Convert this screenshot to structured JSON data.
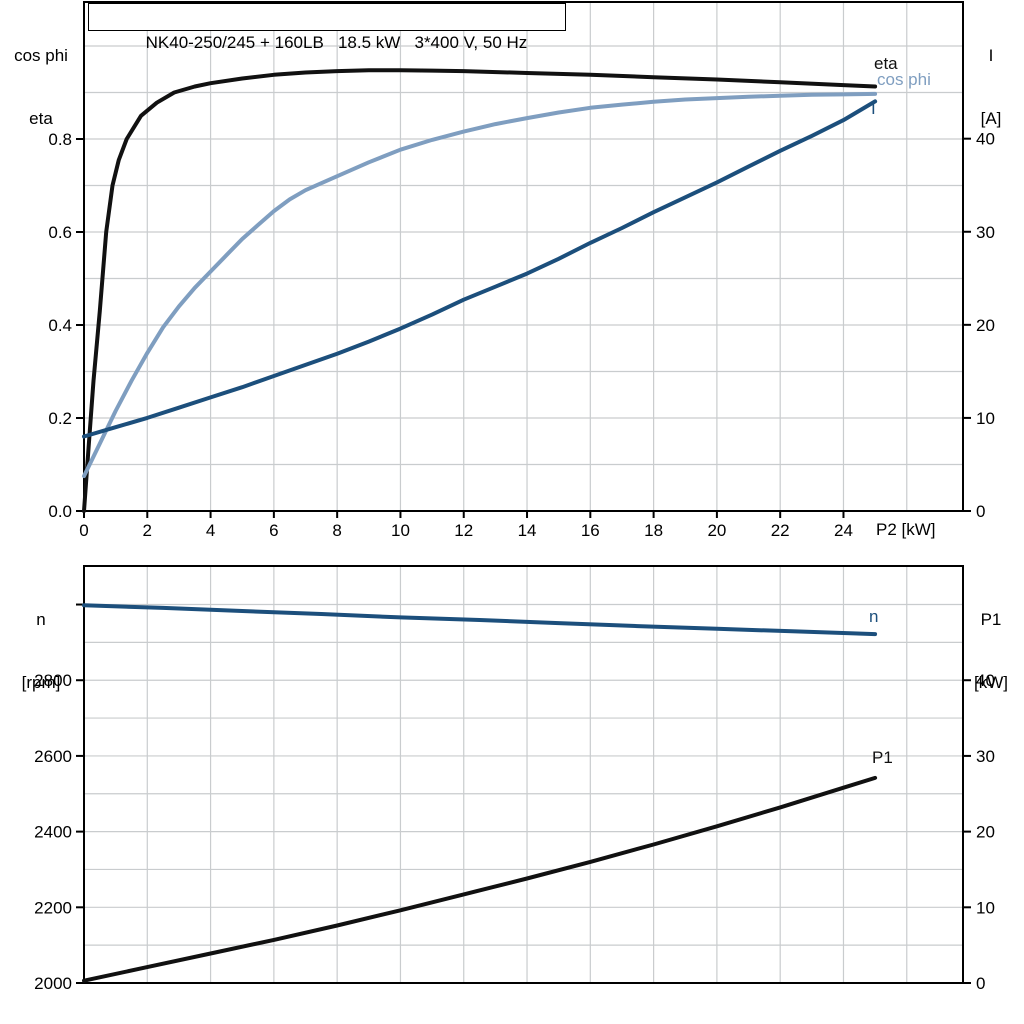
{
  "title_box": {
    "text": "NK40-250/245 + 160LB   18.5 kW   3*400 V, 50 Hz"
  },
  "colors": {
    "eta": "#111111",
    "cos_phi": "#7f9ec0",
    "current": "#1c4f7c",
    "speed": "#1c4f7c",
    "p1": "#111111",
    "grid": "#c9ccce",
    "axis": "#000000",
    "text": "#000000"
  },
  "top_chart": {
    "left_axis_header_line1": "cos phi",
    "left_axis_header_line2": "eta",
    "right_axis_header_line1": "I",
    "right_axis_header_line2": "[A]",
    "x_axis_label": "P2 [kW]",
    "curve_labels": {
      "eta": "eta",
      "cos_phi": "cos phi",
      "current": "I"
    }
  },
  "bottom_chart": {
    "left_axis_header_line1": "n",
    "left_axis_header_line2": "[rpm]",
    "right_axis_header_line1": "P1",
    "right_axis_header_line2": "[kW]",
    "curve_labels": {
      "speed": "n",
      "p1": "P1"
    }
  },
  "chart_data": [
    {
      "type": "line",
      "title": "NK40-250/245 + 160LB  18.5 kW  3*400 V, 50 Hz",
      "xlabel": "P2 [kW]",
      "ylabel_left": "cos phi / eta",
      "ylabel_right": "I [A]",
      "xlim": [
        0,
        27.8
      ],
      "ylim_left": [
        0,
        1.09
      ],
      "ylim_right": [
        0,
        54.7
      ],
      "grid": {
        "x_step": 2,
        "y_left_step": 0.1
      },
      "legend_position": "curve-end-labels",
      "xticks": {
        "values": [
          0,
          2,
          4,
          6,
          8,
          10,
          12,
          14,
          16,
          18,
          20,
          22,
          24
        ],
        "labels": [
          "0",
          "2",
          "4",
          "6",
          "8",
          "10",
          "12",
          "14",
          "16",
          "18",
          "20",
          "22",
          "24"
        ]
      },
      "yticks_left": {
        "values": [
          0.0,
          0.2,
          0.4,
          0.6,
          0.8
        ],
        "labels": [
          "0.0",
          "0.2",
          "0.4",
          "0.6",
          "0.8"
        ]
      },
      "yticks_right": {
        "values": [
          0,
          10,
          20,
          30,
          40
        ],
        "labels": [
          "0",
          "10",
          "20",
          "30",
          "40"
        ]
      },
      "series": [
        {
          "id": "eta",
          "name": "eta",
          "axis": "left",
          "color_key": "eta",
          "points": [
            [
              0,
              0
            ],
            [
              0.15,
              0.14
            ],
            [
              0.3,
              0.28
            ],
            [
              0.5,
              0.43
            ],
            [
              0.7,
              0.6
            ],
            [
              0.9,
              0.7
            ],
            [
              1.1,
              0.755
            ],
            [
              1.35,
              0.8
            ],
            [
              1.8,
              0.85
            ],
            [
              2.3,
              0.878
            ],
            [
              2.85,
              0.9
            ],
            [
              3.5,
              0.913
            ],
            [
              4,
              0.92
            ],
            [
              5,
              0.93
            ],
            [
              6,
              0.938
            ],
            [
              7,
              0.943
            ],
            [
              8,
              0.946
            ],
            [
              9,
              0.948
            ],
            [
              10,
              0.948
            ],
            [
              11,
              0.947
            ],
            [
              12,
              0.946
            ],
            [
              14,
              0.942
            ],
            [
              16,
              0.938
            ],
            [
              18,
              0.933
            ],
            [
              20,
              0.928
            ],
            [
              22,
              0.922
            ],
            [
              24,
              0.916
            ],
            [
              25,
              0.913
            ]
          ]
        },
        {
          "id": "cos-phi",
          "name": "cos phi",
          "axis": "left",
          "color_key": "cos_phi",
          "points": [
            [
              0,
              0.075
            ],
            [
              0.5,
              0.145
            ],
            [
              1,
              0.215
            ],
            [
              1.5,
              0.28
            ],
            [
              2,
              0.34
            ],
            [
              2.5,
              0.395
            ],
            [
              3,
              0.44
            ],
            [
              3.5,
              0.48
            ],
            [
              4,
              0.515
            ],
            [
              4.5,
              0.55
            ],
            [
              5,
              0.585
            ],
            [
              5.5,
              0.615
            ],
            [
              6,
              0.645
            ],
            [
              6.5,
              0.67
            ],
            [
              7,
              0.69
            ],
            [
              7.5,
              0.705
            ],
            [
              8,
              0.72
            ],
            [
              9,
              0.75
            ],
            [
              10,
              0.777
            ],
            [
              11,
              0.798
            ],
            [
              12,
              0.816
            ],
            [
              13,
              0.832
            ],
            [
              14,
              0.845
            ],
            [
              15,
              0.857
            ],
            [
              16,
              0.867
            ],
            [
              17,
              0.874
            ],
            [
              18,
              0.88
            ],
            [
              19,
              0.885
            ],
            [
              20,
              0.888
            ],
            [
              21,
              0.891
            ],
            [
              22,
              0.893
            ],
            [
              23,
              0.895
            ],
            [
              24,
              0.896
            ],
            [
              25,
              0.897
            ]
          ]
        },
        {
          "id": "current",
          "name": "I",
          "axis": "right",
          "color_key": "current",
          "points": [
            [
              0,
              8.0
            ],
            [
              1,
              9.0
            ],
            [
              2,
              10.0
            ],
            [
              3,
              11.1
            ],
            [
              4,
              12.2
            ],
            [
              5,
              13.3
            ],
            [
              6,
              14.5
            ],
            [
              7,
              15.7
            ],
            [
              8,
              16.9
            ],
            [
              9,
              18.2
            ],
            [
              10,
              19.6
            ],
            [
              11,
              21.1
            ],
            [
              12,
              22.7
            ],
            [
              13,
              24.1
            ],
            [
              14,
              25.5
            ],
            [
              15,
              27.1
            ],
            [
              16,
              28.8
            ],
            [
              17,
              30.4
            ],
            [
              18,
              32.1
            ],
            [
              19,
              33.7
            ],
            [
              20,
              35.3
            ],
            [
              21,
              37.0
            ],
            [
              22,
              38.7
            ],
            [
              23,
              40.3
            ],
            [
              24,
              42.0
            ],
            [
              25,
              44.0
            ]
          ]
        }
      ]
    },
    {
      "type": "line",
      "title": "",
      "xlabel": "",
      "ylabel_left": "n [rpm]",
      "ylabel_right": "P1 [kW]",
      "xlim": [
        0,
        27.8
      ],
      "ylim_left": [
        2000,
        3102
      ],
      "ylim_right": [
        0,
        55.1
      ],
      "grid": {
        "x_step": 2,
        "y_left_step": 100
      },
      "legend_position": "curve-end-labels",
      "xticks": {
        "values": [],
        "labels": []
      },
      "yticks_left": {
        "values": [
          2000,
          2200,
          2400,
          2600,
          2800,
          3000
        ],
        "labels": [
          "2000",
          "2200",
          "2400",
          "2600",
          "2800",
          ""
        ]
      },
      "yticks_right": {
        "values": [
          0,
          10,
          20,
          30,
          40
        ],
        "labels": [
          "0",
          "10",
          "20",
          "30",
          "40"
        ]
      },
      "series": [
        {
          "id": "speed",
          "name": "n",
          "axis": "left",
          "color_key": "speed",
          "points": [
            [
              0,
              2998
            ],
            [
              2.5,
              2991
            ],
            [
              5,
              2983
            ],
            [
              7.5,
              2975
            ],
            [
              10,
              2966
            ],
            [
              12.5,
              2959
            ],
            [
              15,
              2951
            ],
            [
              17.5,
              2943
            ],
            [
              20,
              2936
            ],
            [
              22.5,
              2929
            ],
            [
              25,
              2922
            ]
          ]
        },
        {
          "id": "p1",
          "name": "P1",
          "axis": "right",
          "color_key": "p1",
          "points": [
            [
              0,
              0.3
            ],
            [
              2,
              2.1
            ],
            [
              4,
              3.9
            ],
            [
              6,
              5.7
            ],
            [
              8,
              7.6
            ],
            [
              10,
              9.6
            ],
            [
              12,
              11.7
            ],
            [
              14,
              13.8
            ],
            [
              16,
              16.0
            ],
            [
              18,
              18.3
            ],
            [
              20,
              20.7
            ],
            [
              22,
              23.2
            ],
            [
              24,
              25.8
            ],
            [
              25,
              27.1
            ]
          ]
        }
      ]
    }
  ]
}
